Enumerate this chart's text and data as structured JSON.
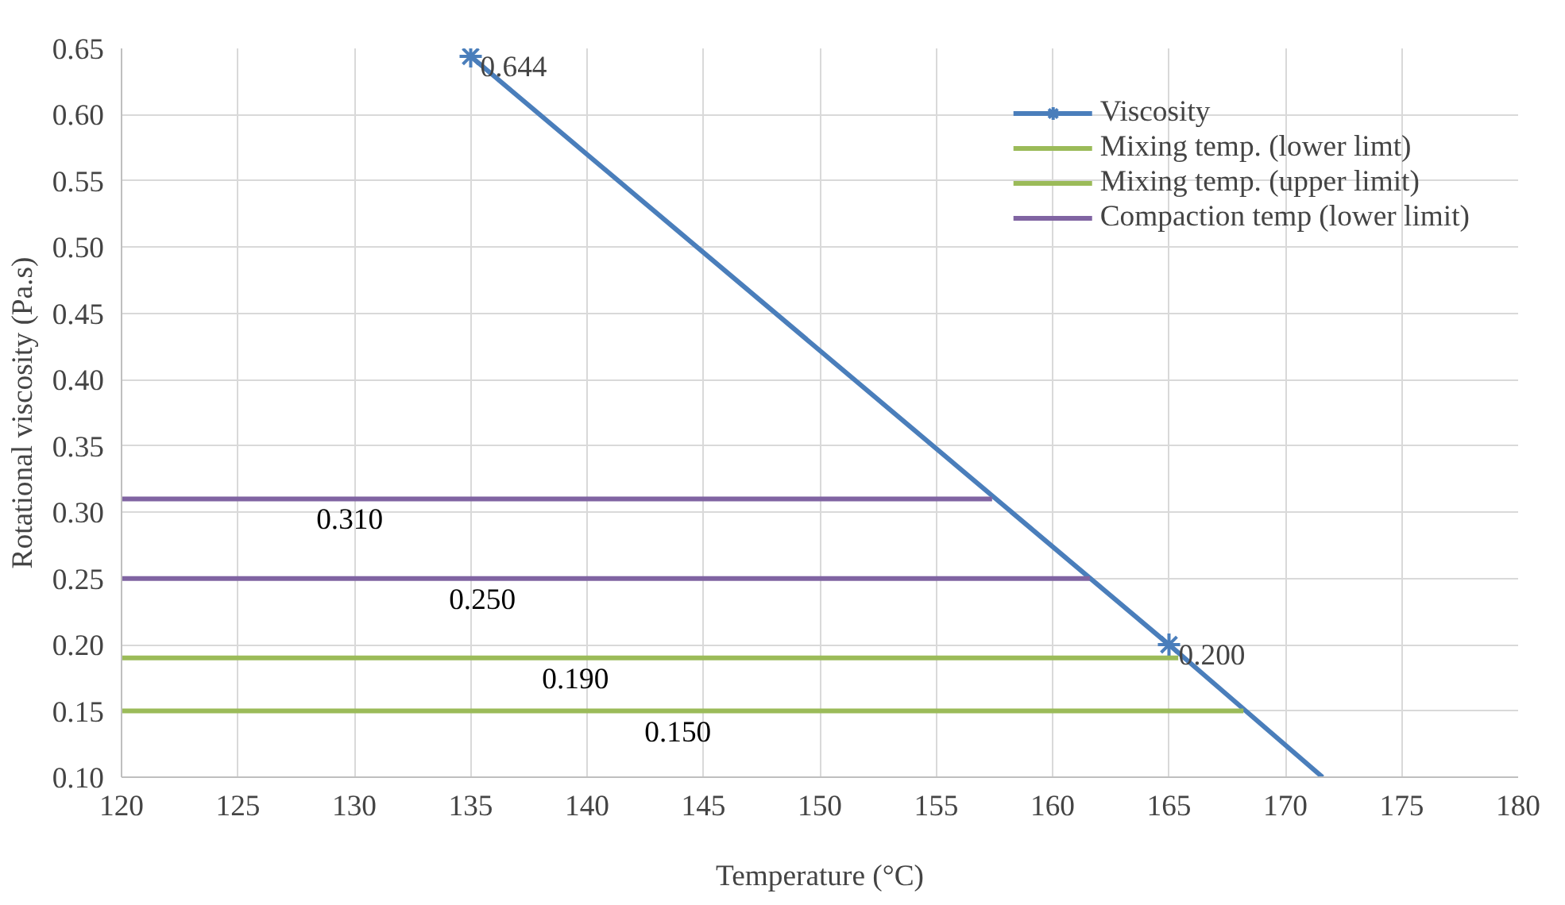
{
  "chart_data": {
    "type": "line",
    "xlabel": "Temperature (°C)",
    "ylabel": "Rotational viscosity (Pa.s)",
    "xlim": [
      120,
      180
    ],
    "xticks": [
      120,
      125,
      130,
      135,
      140,
      145,
      150,
      155,
      160,
      165,
      170,
      175,
      180
    ],
    "ylim": [
      0.1,
      0.65
    ],
    "yticks": [
      {
        "value": 0.1,
        "label": "0.10"
      },
      {
        "value": 0.15,
        "label": "0.15"
      },
      {
        "value": 0.2,
        "label": "0.20"
      },
      {
        "value": 0.25,
        "label": "0.25"
      },
      {
        "value": 0.3,
        "label": "0.30"
      },
      {
        "value": 0.35,
        "label": "0.35"
      },
      {
        "value": 0.4,
        "label": "0.40"
      },
      {
        "value": 0.45,
        "label": "0.45"
      },
      {
        "value": 0.5,
        "label": "0.50"
      },
      {
        "value": 0.55,
        "label": "0.55"
      },
      {
        "value": 0.6,
        "label": "0.60"
      },
      {
        "value": 0.65,
        "label": "0.65"
      }
    ],
    "grid": true,
    "legend": "top right",
    "series": [
      {
        "name": "Viscosity",
        "color": "#4a7ebb",
        "x": [
          135,
          165
        ],
        "values": [
          0.644,
          0.2
        ],
        "marker": "cross"
      },
      {
        "color": "#4a7ebb",
        "x": [
          165,
          171.6
        ],
        "values": [
          0.2,
          0.1
        ],
        "marker": "none"
      },
      {
        "name": "Mixing temp. (lower limt)",
        "color": "#9bbb59",
        "x": [
          120,
          168.2
        ],
        "values": [
          0.15,
          0.15
        ],
        "marker": "none"
      },
      {
        "name": "Mixing temp. (upper limit)",
        "color": "#9bbb59",
        "x": [
          120,
          165.4
        ],
        "values": [
          0.19,
          0.19
        ],
        "marker": "none"
      },
      {
        "name": "Compaction temp (lower limit)",
        "color": "#8064a2",
        "x": [
          120,
          161.6
        ],
        "values": [
          0.25,
          0.25
        ],
        "marker": "none"
      },
      {
        "color": "#8064a2",
        "x": [
          120,
          157.4
        ],
        "values": [
          0.31,
          0.31
        ],
        "marker": "none"
      }
    ],
    "annotations": [
      {
        "text": "0.644",
        "x": 135,
        "y": 0.644
      },
      {
        "text": "0.200",
        "x": 165,
        "y": 0.2
      },
      {
        "text": "0.310",
        "x": 129.8,
        "y": 0.31
      },
      {
        "text": "0.250",
        "x": 135.5,
        "y": 0.25
      },
      {
        "text": "0.190",
        "x": 139.5,
        "y": 0.19
      },
      {
        "text": "0.150",
        "x": 143.9,
        "y": 0.15
      }
    ]
  }
}
